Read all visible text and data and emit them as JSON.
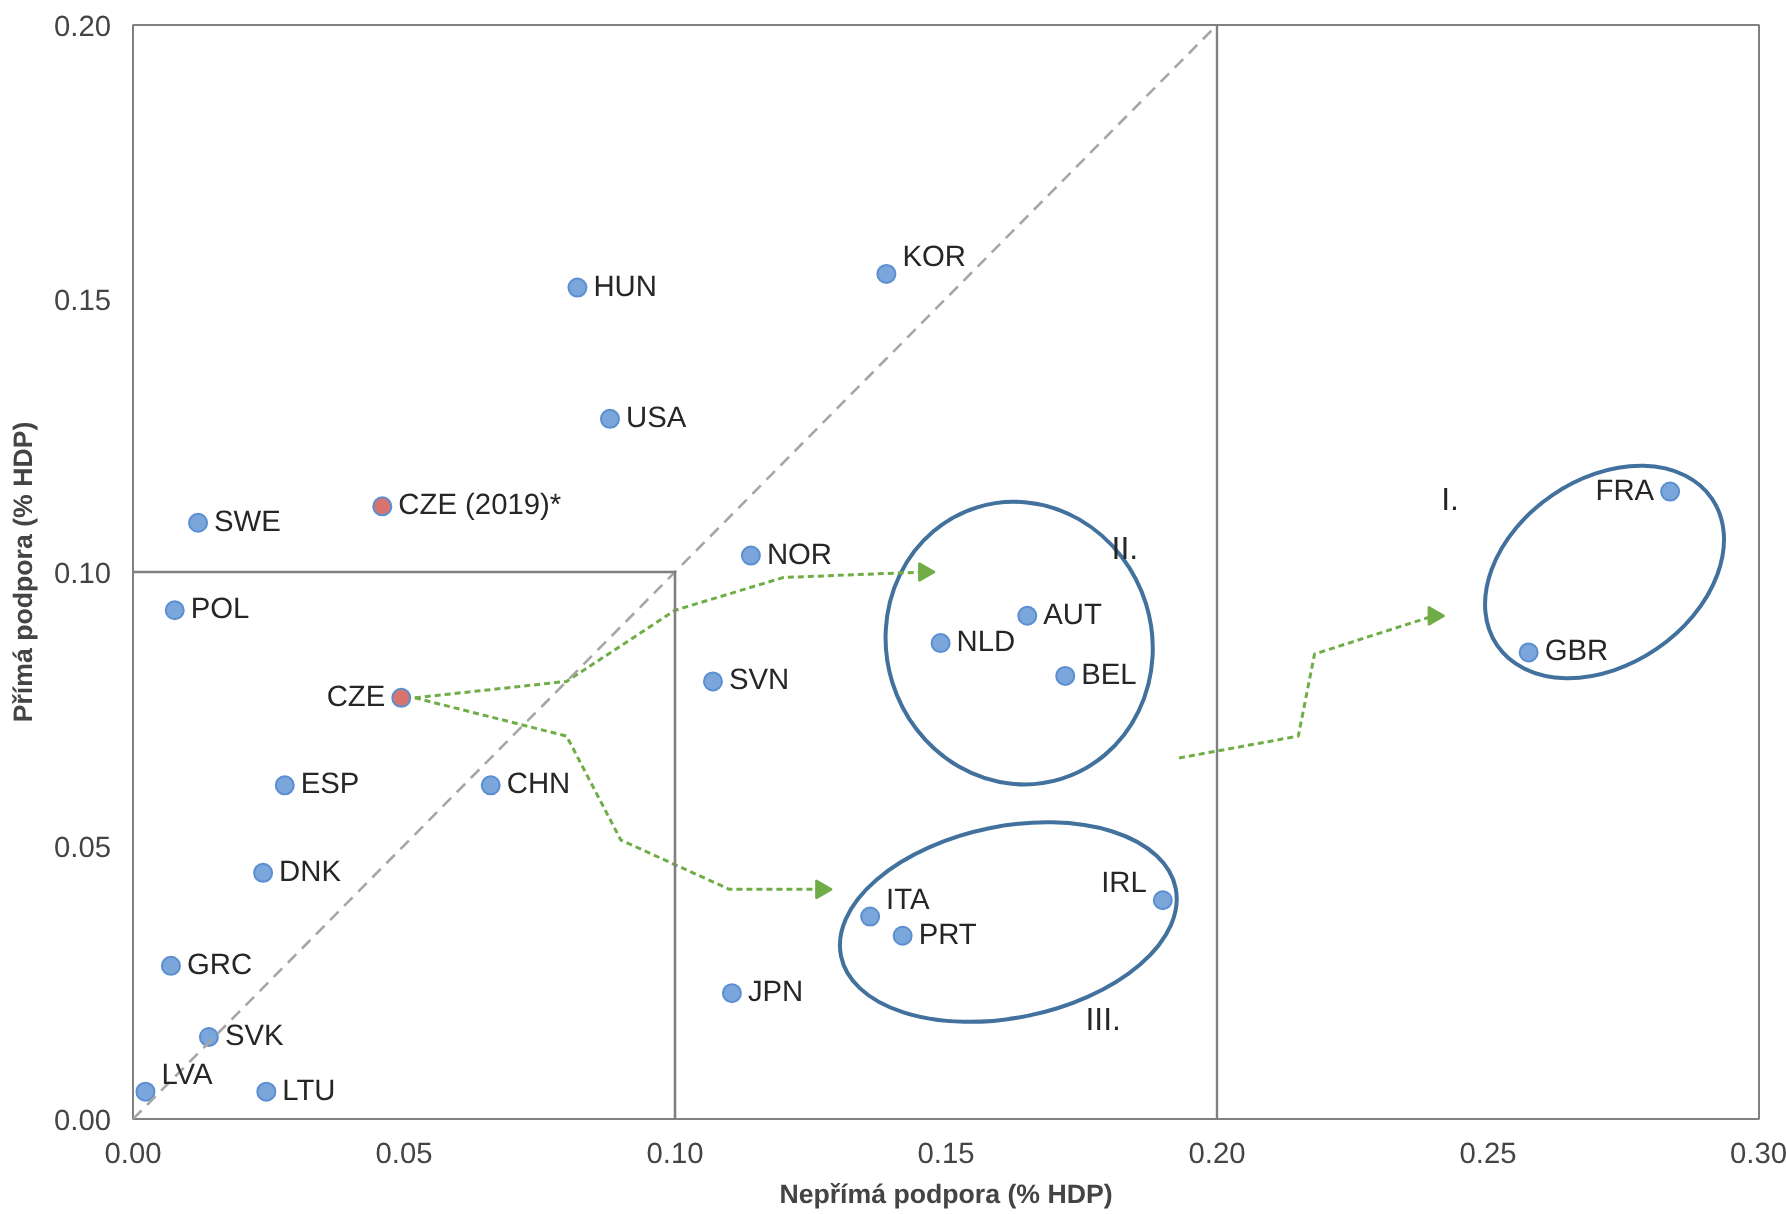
{
  "chart_data": {
    "type": "scatter",
    "xlabel": "Nepřímá podpora (% HDP)",
    "ylabel": "Přímá podpora (% HDP)",
    "xlim": [
      0,
      0.3
    ],
    "ylim": [
      0,
      0.2
    ],
    "xticks": [
      {
        "value": 0,
        "label": "0.00"
      },
      {
        "value": 0.05,
        "label": "0.05"
      },
      {
        "value": 0.1,
        "label": "0.10"
      },
      {
        "value": 0.15,
        "label": "0.15"
      },
      {
        "value": 0.2,
        "label": "0.20"
      },
      {
        "value": 0.25,
        "label": "0.25"
      },
      {
        "value": 0.3,
        "label": "0.30"
      }
    ],
    "yticks": [
      {
        "value": 0,
        "label": "0.00"
      },
      {
        "value": 0.05,
        "label": "0.05"
      },
      {
        "value": 0.1,
        "label": "0.10"
      },
      {
        "value": 0.15,
        "label": "0.15"
      },
      {
        "value": 0.2,
        "label": "0.20"
      }
    ],
    "grid": false,
    "marker": "circle",
    "series": [
      {
        "color": "#7aa6dc",
        "x": [
          0.0023,
          0.0246,
          0.014,
          0.007,
          0.024,
          0.028,
          0.066,
          0.0077,
          0.012,
          0.082,
          0.088,
          0.139,
          0.114,
          0.107,
          0.1105,
          0.136,
          0.142,
          0.19,
          0.149,
          0.165,
          0.172,
          0.2836,
          0.2575
        ],
        "values": [
          0.005,
          0.005,
          0.015,
          0.028,
          0.045,
          0.061,
          0.061,
          0.093,
          0.109,
          0.152,
          0.128,
          0.1545,
          0.103,
          0.08,
          0.023,
          0.037,
          0.0335,
          0.04,
          0.087,
          0.092,
          0.081,
          0.1147,
          0.0853
        ]
      },
      {
        "color": "#d9736e",
        "x": [
          0.0495,
          0.046
        ],
        "values": [
          0.077,
          0.112
        ]
      },
      {
        "type": "line",
        "color": "#a6a6a6",
        "line_style": "dashed",
        "marker": "none",
        "x": [
          0,
          0.2
        ],
        "values": [
          0,
          0.2
        ]
      },
      {
        "type": "line",
        "color": "#808080",
        "line_style": "solid",
        "marker": "none",
        "x": [
          0,
          0.1,
          0.1
        ],
        "values": [
          0.1,
          0.1,
          0
        ]
      }
    ],
    "ref_lines": [
      {
        "axis": "x",
        "value": 0.2,
        "color": "#808080"
      }
    ],
    "annotations": [
      {
        "text": "LVA",
        "x": 0.0023,
        "y": 0.005
      },
      {
        "text": "LTU",
        "x": 0.0246,
        "y": 0.005
      },
      {
        "text": "SVK",
        "x": 0.014,
        "y": 0.015
      },
      {
        "text": "GRC",
        "x": 0.007,
        "y": 0.028
      },
      {
        "text": "DNK",
        "x": 0.024,
        "y": 0.045
      },
      {
        "text": "ESP",
        "x": 0.028,
        "y": 0.061
      },
      {
        "text": "CHN",
        "x": 0.066,
        "y": 0.061
      },
      {
        "text": "POL",
        "x": 0.0077,
        "y": 0.093
      },
      {
        "text": "SWE",
        "x": 0.012,
        "y": 0.109
      },
      {
        "text": "HUN",
        "x": 0.082,
        "y": 0.152
      },
      {
        "text": "USA",
        "x": 0.088,
        "y": 0.128
      },
      {
        "text": "KOR",
        "x": 0.139,
        "y": 0.1545
      },
      {
        "text": "NOR",
        "x": 0.114,
        "y": 0.103
      },
      {
        "text": "SVN",
        "x": 0.107,
        "y": 0.08
      },
      {
        "text": "JPN",
        "x": 0.1105,
        "y": 0.023
      },
      {
        "text": "ITA",
        "x": 0.136,
        "y": 0.037
      },
      {
        "text": "PRT",
        "x": 0.142,
        "y": 0.0335
      },
      {
        "text": "IRL",
        "x": 0.19,
        "y": 0.04
      },
      {
        "text": "NLD",
        "x": 0.149,
        "y": 0.087
      },
      {
        "text": "AUT",
        "x": 0.165,
        "y": 0.092
      },
      {
        "text": "BEL",
        "x": 0.172,
        "y": 0.081
      },
      {
        "text": "FRA",
        "x": 0.2836,
        "y": 0.1147
      },
      {
        "text": "GBR",
        "x": 0.2575,
        "y": 0.0853
      },
      {
        "text": "CZE",
        "x": 0.0495,
        "y": 0.077
      },
      {
        "text": "CZE (2019)*",
        "x": 0.046,
        "y": 0.112
      },
      "I.",
      "II.",
      "III."
    ]
  }
}
